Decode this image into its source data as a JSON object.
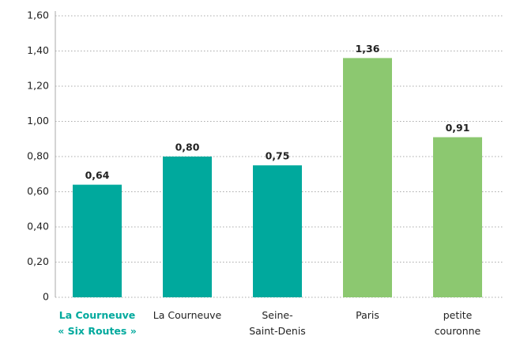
{
  "chart_data": {
    "type": "bar",
    "categories": [
      "La Courneuve\n« Six Routes »",
      "La Courneuve",
      "Seine-\nSaint-Denis",
      "Paris",
      "petite\ncouronne"
    ],
    "values": [
      0.64,
      0.8,
      0.75,
      1.36,
      0.91
    ],
    "value_labels": [
      "0,64",
      "0,80",
      "0,75",
      "1,36",
      "0,91"
    ],
    "colors": [
      "#00a99d",
      "#00a99d",
      "#00a99d",
      "#8cc870",
      "#8cc870"
    ],
    "ylim": [
      0,
      1.6
    ],
    "yticks": [
      0,
      {
        "value": 0.2,
        "label": "0,20"
      },
      {
        "value": 0.4,
        "label": "0,40"
      },
      {
        "value": 0.6,
        "label": "0,60"
      },
      {
        "value": 0.8,
        "label": "0,80"
      },
      {
        "value": 1.0,
        "label": "1,00"
      },
      {
        "value": 1.2,
        "label": "1,20"
      },
      {
        "value": 1.4,
        "label": "1,40"
      },
      {
        "value": 1.6,
        "label": "1,60"
      }
    ],
    "grid": true
  }
}
